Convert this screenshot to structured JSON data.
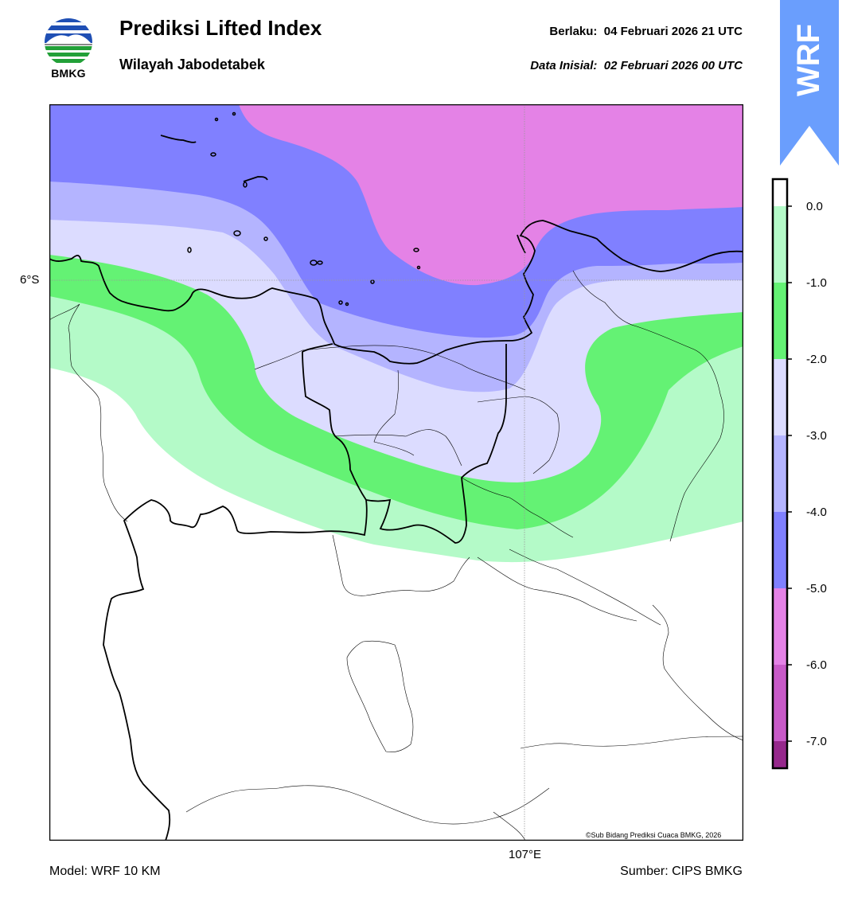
{
  "header": {
    "title": "Prediksi Lifted Index",
    "subtitle": "Wilayah Jabodetabek",
    "valid_label": "Berlaku:",
    "valid_value": "04 Februari 2026 21 UTC",
    "init_label": "Data Inisial:",
    "init_value": "02 Februari 2026 00 UTC",
    "valid_text": "Berlaku:  04 Februari 2026 21 UTC",
    "init_text": "Data Inisial:  02 Februari 2026 00 UTC"
  },
  "logo": {
    "text": "BMKG"
  },
  "badge": {
    "text": "WRF",
    "color": "#6a9efd"
  },
  "map": {
    "lat_label": "6°S",
    "lon_label": "107°E",
    "credit": "©Sub Bidang Prediksi Cuaca BMKG, 2026"
  },
  "footer": {
    "model": "Model: WRF 10 KM",
    "source": "Sumber: CIPS BMKG"
  },
  "legend": {
    "ticks": [
      "0.0",
      "-1.0",
      "-2.0",
      "-3.0",
      "-4.0",
      "-5.0",
      "-6.0",
      "-7.0"
    ],
    "bands": [
      {
        "range": "> 0.0",
        "color": "#ffffff"
      },
      {
        "range": "0.0 to -1.0",
        "color": "#b4fac8"
      },
      {
        "range": "-1.0 to -2.0",
        "color": "#64f274"
      },
      {
        "range": "-2.0 to -3.0",
        "color": "#dcdcff"
      },
      {
        "range": "-3.0 to -4.0",
        "color": "#b4b4ff"
      },
      {
        "range": "-4.0 to -5.0",
        "color": "#8080ff"
      },
      {
        "range": "-5.0 to -6.0",
        "color": "#e482e6"
      },
      {
        "range": "-6.0 to -7.0",
        "color": "#c85ac8"
      },
      {
        "range": "< -7.0",
        "color": "#96288c"
      }
    ]
  }
}
